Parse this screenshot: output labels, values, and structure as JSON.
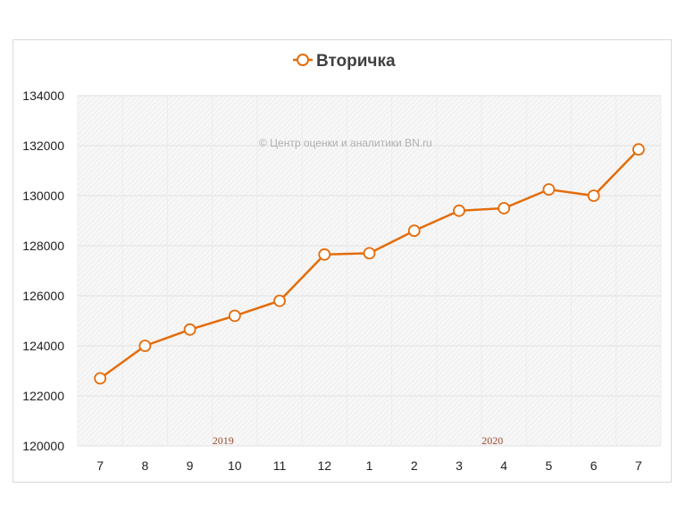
{
  "chart_data": {
    "type": "line",
    "title": "Вторичка",
    "watermark": "© Центр оценки и аналитики BN.ru",
    "categories": [
      "7",
      "8",
      "9",
      "10",
      "11",
      "12",
      "1",
      "2",
      "3",
      "4",
      "5",
      "6",
      "7"
    ],
    "year_labels": [
      {
        "label": "2019",
        "category_index": 3
      },
      {
        "label": "2020",
        "category_index": 9
      }
    ],
    "series": [
      {
        "name": "Вторичка",
        "color": "#e46c0a",
        "values": [
          122700,
          124000,
          124650,
          125200,
          125800,
          127650,
          127700,
          128600,
          129400,
          129500,
          130250,
          130000,
          131850
        ]
      }
    ],
    "ylim": [
      120000,
      134000
    ],
    "yticks": [
      120000,
      122000,
      124000,
      126000,
      128000,
      130000,
      132000,
      134000
    ],
    "xlabel": "",
    "ylabel": "",
    "legend": "top-center",
    "grid": true
  }
}
